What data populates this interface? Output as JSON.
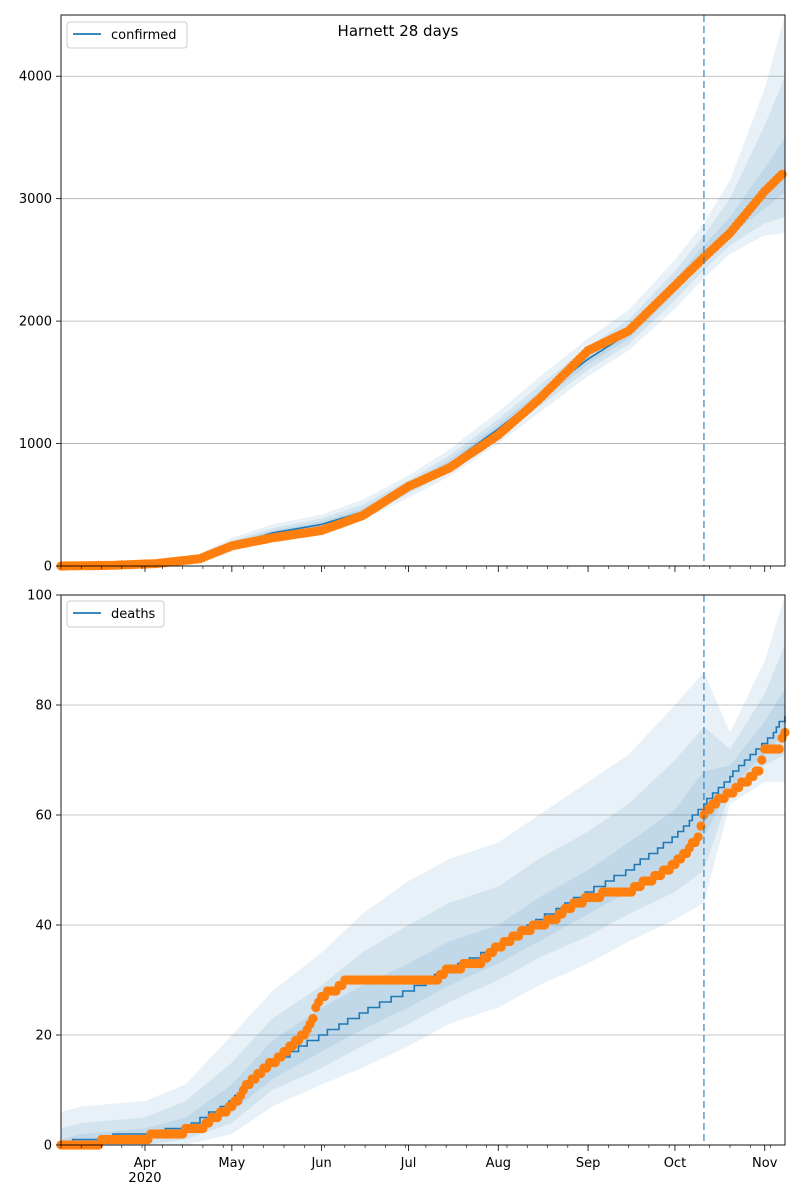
{
  "title": "Harnett 28 days",
  "colors": {
    "model": "#1f77b4",
    "observed": "#ff7f0e",
    "band": "#1f77b4",
    "grid": "#b0b0b0",
    "vline": "#1f77b4"
  },
  "x_axis": {
    "month_ticks": [
      {
        "date": "2020-04-01",
        "label": "Apr",
        "sublabel": "2020"
      },
      {
        "date": "2020-05-01",
        "label": "May",
        "sublabel": ""
      },
      {
        "date": "2020-06-01",
        "label": "Jun",
        "sublabel": ""
      },
      {
        "date": "2020-07-01",
        "label": "Jul",
        "sublabel": ""
      },
      {
        "date": "2020-08-01",
        "label": "Aug",
        "sublabel": ""
      },
      {
        "date": "2020-09-01",
        "label": "Sep",
        "sublabel": ""
      },
      {
        "date": "2020-10-01",
        "label": "Oct",
        "sublabel": ""
      },
      {
        "date": "2020-11-01",
        "label": "Nov",
        "sublabel": ""
      }
    ],
    "xlim": [
      "2020-03-03",
      "2020-11-08"
    ],
    "forecast_start": "2020-10-11"
  },
  "chart_data": [
    {
      "type": "line",
      "legend": "confirmed",
      "legend_position": "upper-left",
      "ylim": [
        0,
        4500
      ],
      "yticks": [
        0,
        1000,
        2000,
        3000,
        4000
      ],
      "grid": "y",
      "model": {
        "x": [
          "2020-03-03",
          "2020-03-20",
          "2020-04-05",
          "2020-04-20",
          "2020-05-01",
          "2020-05-15",
          "2020-06-01",
          "2020-06-15",
          "2020-07-01",
          "2020-07-15",
          "2020-08-01",
          "2020-08-15",
          "2020-09-01",
          "2020-09-15",
          "2020-10-01",
          "2020-10-11",
          "2020-10-20",
          "2020-11-01",
          "2020-11-08"
        ],
        "y": [
          0,
          5,
          20,
          60,
          170,
          270,
          340,
          440,
          640,
          830,
          1120,
          1380,
          1690,
          1900,
          2280,
          2550,
          2750,
          3030,
          3230
        ],
        "bands": [
          {
            "lower": [
              0,
              0,
              5,
              30,
              120,
              215,
              280,
              370,
              560,
              730,
              1000,
              1250,
              1550,
              1760,
              2100,
              2350,
              2550,
              2700,
              2720
            ],
            "upper": [
              5,
              15,
              40,
              100,
              230,
              340,
              420,
              540,
              740,
              950,
              1260,
              1540,
              1860,
              2090,
              2500,
              2800,
              3150,
              3900,
              4500
            ]
          },
          {
            "lower": [
              0,
              2,
              10,
              40,
              140,
              235,
              300,
              395,
              590,
              770,
              1050,
              1300,
              1600,
              1810,
              2170,
              2420,
              2620,
              2800,
              2850
            ],
            "upper": [
              3,
              10,
              30,
              85,
              205,
              310,
              390,
              500,
              700,
              900,
              1200,
              1470,
              1790,
              2010,
              2410,
              2700,
              3000,
              3600,
              4000
            ]
          },
          {
            "lower": [
              0,
              3,
              14,
              48,
              155,
              250,
              320,
              415,
              615,
              800,
              1085,
              1340,
              1645,
              1855,
              2230,
              2490,
              2700,
              2920,
              3050
            ],
            "upper": [
              1,
              7,
              25,
              72,
              190,
              290,
              365,
              470,
              670,
              865,
              1160,
              1420,
              1740,
              1950,
              2340,
              2620,
              2850,
              3250,
              3500
            ]
          }
        ]
      },
      "observed": {
        "x": [
          "2020-03-03",
          "2020-03-20",
          "2020-04-05",
          "2020-04-20",
          "2020-05-01",
          "2020-05-15",
          "2020-06-01",
          "2020-06-15",
          "2020-07-01",
          "2020-07-15",
          "2020-08-01",
          "2020-08-15",
          "2020-09-01",
          "2020-09-15",
          "2020-10-01",
          "2020-10-11",
          "2020-10-20",
          "2020-11-01",
          "2020-11-07"
        ],
        "y": [
          0,
          5,
          20,
          60,
          165,
          230,
          290,
          410,
          650,
          800,
          1070,
          1360,
          1760,
          1920,
          2290,
          2520,
          2720,
          3060,
          3200
        ]
      }
    },
    {
      "type": "line",
      "legend": "deaths",
      "legend_position": "upper-left",
      "ylim": [
        0,
        100
      ],
      "yticks": [
        0,
        20,
        40,
        60,
        80,
        100
      ],
      "grid": "y",
      "model": {
        "x": [
          "2020-03-03",
          "2020-03-10",
          "2020-04-01",
          "2020-04-15",
          "2020-05-01",
          "2020-05-15",
          "2020-06-01",
          "2020-06-15",
          "2020-07-01",
          "2020-07-15",
          "2020-08-01",
          "2020-08-15",
          "2020-09-01",
          "2020-09-15",
          "2020-10-01",
          "2020-10-11",
          "2020-10-20",
          "2020-11-01",
          "2020-11-08"
        ],
        "y": [
          0,
          1,
          2,
          3,
          8,
          15,
          20,
          24,
          28,
          32,
          36,
          41,
          46,
          50,
          56,
          62,
          67,
          73,
          78
        ],
        "bands": [
          {
            "lower": [
              0,
              0,
              0,
              0,
              2,
              7,
              11,
              14,
              18,
              22,
              25,
              29,
              33,
              37,
              41,
              44,
              62,
              66,
              66
            ],
            "upper": [
              6,
              7,
              8,
              11,
              20,
              28,
              35,
              42,
              48,
              52,
              55,
              60,
              66,
              71,
              80,
              86,
              75,
              88,
              100
            ]
          },
          {
            "lower": [
              0,
              0,
              0,
              1,
              4,
              10,
              14,
              18,
              22,
              26,
              30,
              34,
              38,
              42,
              46,
              50,
              64,
              69,
              71
            ],
            "upper": [
              3,
              4,
              5,
              8,
              15,
              23,
              29,
              35,
              40,
              44,
              47,
              52,
              57,
              62,
              70,
              76,
              72,
              82,
              91
            ]
          },
          {
            "lower": [
              0,
              0,
              1,
              2,
              6,
              12,
              17,
              21,
              25,
              29,
              33,
              37,
              42,
              46,
              51,
              56,
              65,
              71,
              75
            ],
            "upper": [
              1,
              2,
              3,
              5,
              11,
              19,
              25,
              29,
              33,
              37,
              40,
              45,
              50,
              55,
              61,
              68,
              69,
              77,
              83
            ]
          }
        ]
      },
      "observed": {
        "x": [
          "2020-03-03",
          "2020-03-31",
          "2020-04-05",
          "2020-04-10",
          "2020-04-20",
          "2020-04-25",
          "2020-05-01",
          "2020-05-08",
          "2020-05-15",
          "2020-05-20",
          "2020-05-27",
          "2020-06-01",
          "2020-06-05",
          "2020-06-10",
          "2020-06-20",
          "2020-07-01",
          "2020-07-10",
          "2020-07-15",
          "2020-07-25",
          "2020-08-01",
          "2020-08-10",
          "2020-08-20",
          "2020-08-25",
          "2020-09-01",
          "2020-09-10",
          "2020-09-15",
          "2020-09-25",
          "2020-10-01",
          "2020-10-06",
          "2020-10-09",
          "2020-10-11",
          "2020-10-14",
          "2020-10-20",
          "2020-10-25",
          "2020-10-30",
          "2020-11-01",
          "2020-11-06",
          "2020-11-08"
        ],
        "y": [
          0,
          1,
          2,
          2,
          3,
          5,
          7,
          12,
          15,
          17,
          21,
          27,
          28,
          30,
          30,
          30,
          30,
          32,
          33,
          36,
          39,
          41,
          43,
          45,
          46,
          46,
          49,
          51,
          54,
          56,
          60,
          62,
          64,
          66,
          68,
          72,
          72,
          75
        ]
      }
    }
  ]
}
